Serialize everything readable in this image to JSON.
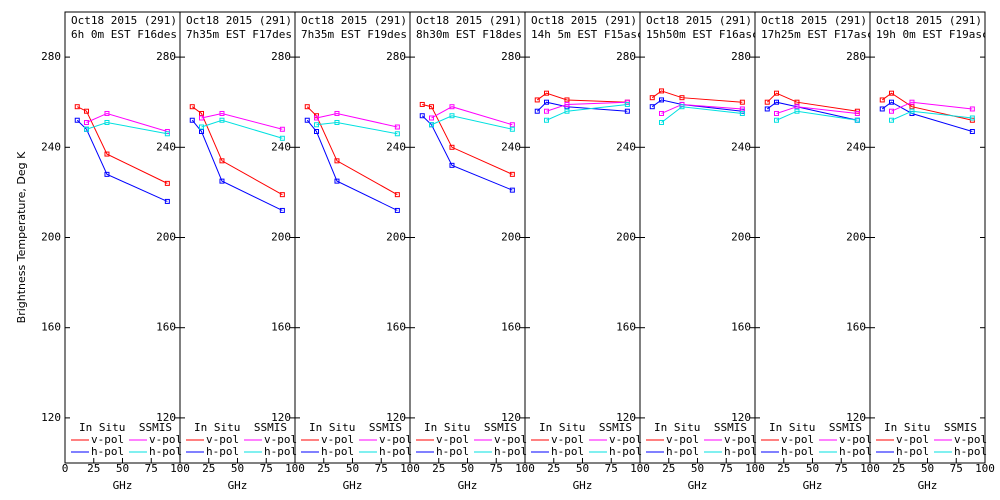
{
  "chart_data": [
    {
      "type": "line",
      "title": [
        "Oct18 2015 (291)",
        "6h 0m EST F16des"
      ],
      "ylabel": "Brightness Temperature, Deg K",
      "xlabel": "GHz",
      "x": [
        10.65,
        18.7,
        36.5,
        89
      ],
      "xlim": [
        0,
        100
      ],
      "xticks": [
        0,
        25,
        50,
        75,
        100
      ],
      "ylim": [
        100,
        300
      ],
      "yticks": [
        120,
        160,
        200,
        240,
        280
      ],
      "legend_titles": [
        "In Situ",
        "SSMIS"
      ],
      "series": [
        {
          "name": "v-pol",
          "color": "#ff0000",
          "values": [
            258,
            256,
            237,
            224
          ]
        },
        {
          "name": "h-pol",
          "color": "#0000ff",
          "values": [
            252,
            248,
            228,
            216
          ]
        },
        {
          "name": "v-pol",
          "color": "#ff00ff",
          "values": [
            null,
            251,
            255,
            247
          ]
        },
        {
          "name": "h-pol",
          "color": "#00e0e0",
          "values": [
            null,
            248,
            251,
            246
          ]
        }
      ]
    },
    {
      "type": "line",
      "title": [
        "Oct18 2015 (291)",
        "7h35m EST F17des"
      ],
      "xlabel": "GHz",
      "x": [
        10.65,
        18.7,
        36.5,
        89
      ],
      "xlim": [
        0,
        100
      ],
      "xticks": [
        25,
        50,
        75,
        100
      ],
      "ylim": [
        100,
        300
      ],
      "yticks": [
        120,
        160,
        200,
        240,
        280
      ],
      "legend_titles": [
        "In Situ",
        "SSMIS"
      ],
      "series": [
        {
          "name": "v-pol",
          "color": "#ff0000",
          "values": [
            258,
            255,
            234,
            219
          ]
        },
        {
          "name": "h-pol",
          "color": "#0000ff",
          "values": [
            252,
            247,
            225,
            212
          ]
        },
        {
          "name": "v-pol",
          "color": "#ff00ff",
          "values": [
            null,
            253,
            255,
            248
          ]
        },
        {
          "name": "h-pol",
          "color": "#00e0e0",
          "values": [
            null,
            249,
            252,
            244
          ]
        }
      ]
    },
    {
      "type": "line",
      "title": [
        "Oct18 2015 (291)",
        "7h35m EST F19des"
      ],
      "xlabel": "GHz",
      "x": [
        10.65,
        18.7,
        36.5,
        89
      ],
      "xlim": [
        0,
        100
      ],
      "xticks": [
        25,
        50,
        75,
        100
      ],
      "ylim": [
        100,
        300
      ],
      "yticks": [
        120,
        160,
        200,
        240,
        280
      ],
      "legend_titles": [
        "In Situ",
        "SSMIS"
      ],
      "series": [
        {
          "name": "v-pol",
          "color": "#ff0000",
          "values": [
            258,
            254,
            234,
            219
          ]
        },
        {
          "name": "h-pol",
          "color": "#0000ff",
          "values": [
            252,
            247,
            225,
            212
          ]
        },
        {
          "name": "v-pol",
          "color": "#ff00ff",
          "values": [
            null,
            253,
            255,
            249
          ]
        },
        {
          "name": "h-pol",
          "color": "#00e0e0",
          "values": [
            null,
            250,
            251,
            246
          ]
        }
      ]
    },
    {
      "type": "line",
      "title": [
        "Oct18 2015 (291)",
        "8h30m EST F18des"
      ],
      "xlabel": "GHz",
      "x": [
        10.65,
        18.7,
        36.5,
        89
      ],
      "xlim": [
        0,
        100
      ],
      "xticks": [
        25,
        50,
        75,
        100
      ],
      "ylim": [
        100,
        300
      ],
      "yticks": [
        120,
        160,
        200,
        240,
        280
      ],
      "legend_titles": [
        "In Situ",
        "SSMIS"
      ],
      "series": [
        {
          "name": "v-pol",
          "color": "#ff0000",
          "values": [
            259,
            258,
            240,
            228
          ]
        },
        {
          "name": "h-pol",
          "color": "#0000ff",
          "values": [
            254,
            250,
            232,
            221
          ]
        },
        {
          "name": "v-pol",
          "color": "#ff00ff",
          "values": [
            null,
            253,
            258,
            250
          ]
        },
        {
          "name": "h-pol",
          "color": "#00e0e0",
          "values": [
            null,
            250,
            254,
            248
          ]
        }
      ]
    },
    {
      "type": "line",
      "title": [
        "Oct18 2015 (291)",
        "14h 5m EST F15asc"
      ],
      "xlabel": "GHz",
      "x": [
        10.65,
        18.7,
        36.5,
        89
      ],
      "xlim": [
        0,
        100
      ],
      "xticks": [
        25,
        50,
        75,
        100
      ],
      "ylim": [
        100,
        300
      ],
      "yticks": [
        120,
        160,
        200,
        240,
        280
      ],
      "legend_titles": [
        "In Situ",
        "SSMIS"
      ],
      "series": [
        {
          "name": "v-pol",
          "color": "#ff0000",
          "values": [
            261,
            264,
            261,
            260
          ]
        },
        {
          "name": "h-pol",
          "color": "#0000ff",
          "values": [
            256,
            260,
            258,
            256
          ]
        },
        {
          "name": "v-pol",
          "color": "#ff00ff",
          "values": [
            null,
            256,
            259,
            260
          ]
        },
        {
          "name": "h-pol",
          "color": "#00e0e0",
          "values": [
            null,
            252,
            256,
            259
          ]
        }
      ]
    },
    {
      "type": "line",
      "title": [
        "Oct18 2015 (291)",
        "15h50m EST F16asc"
      ],
      "xlabel": "GHz",
      "x": [
        10.65,
        18.7,
        36.5,
        89
      ],
      "xlim": [
        0,
        100
      ],
      "xticks": [
        25,
        50,
        75,
        100
      ],
      "ylim": [
        100,
        300
      ],
      "yticks": [
        120,
        160,
        200,
        240,
        280
      ],
      "legend_titles": [
        "In Situ",
        "SSMIS"
      ],
      "series": [
        {
          "name": "v-pol",
          "color": "#ff0000",
          "values": [
            262,
            265,
            262,
            260
          ]
        },
        {
          "name": "h-pol",
          "color": "#0000ff",
          "values": [
            258,
            261,
            259,
            256
          ]
        },
        {
          "name": "v-pol",
          "color": "#ff00ff",
          "values": [
            null,
            255,
            259,
            257
          ]
        },
        {
          "name": "h-pol",
          "color": "#00e0e0",
          "values": [
            null,
            251,
            258,
            255
          ]
        }
      ]
    },
    {
      "type": "line",
      "title": [
        "Oct18 2015 (291)",
        "17h25m EST F17asc"
      ],
      "xlabel": "GHz",
      "x": [
        10.65,
        18.7,
        36.5,
        89
      ],
      "xlim": [
        0,
        100
      ],
      "xticks": [
        25,
        50,
        75,
        100
      ],
      "ylim": [
        100,
        300
      ],
      "yticks": [
        120,
        160,
        200,
        240,
        280
      ],
      "legend_titles": [
        "In Situ",
        "SSMIS"
      ],
      "series": [
        {
          "name": "v-pol",
          "color": "#ff0000",
          "values": [
            260,
            264,
            260,
            256
          ]
        },
        {
          "name": "h-pol",
          "color": "#0000ff",
          "values": [
            257,
            260,
            258,
            252
          ]
        },
        {
          "name": "v-pol",
          "color": "#ff00ff",
          "values": [
            null,
            255,
            258,
            255
          ]
        },
        {
          "name": "h-pol",
          "color": "#00e0e0",
          "values": [
            null,
            252,
            256,
            252
          ]
        }
      ]
    },
    {
      "type": "line",
      "title": [
        "Oct18 2015 (291)",
        "19h 0m EST F19asc"
      ],
      "xlabel": "GHz",
      "x": [
        10.65,
        18.7,
        36.5,
        89
      ],
      "xlim": [
        0,
        100
      ],
      "xticks": [
        25,
        50,
        75,
        100
      ],
      "ylim": [
        100,
        300
      ],
      "yticks": [
        120,
        160,
        200,
        240,
        280
      ],
      "legend_titles": [
        "In Situ",
        "SSMIS"
      ],
      "series": [
        {
          "name": "v-pol",
          "color": "#ff0000",
          "values": [
            261,
            264,
            258,
            252
          ]
        },
        {
          "name": "h-pol",
          "color": "#0000ff",
          "values": [
            257,
            260,
            255,
            247
          ]
        },
        {
          "name": "v-pol",
          "color": "#ff00ff",
          "values": [
            null,
            256,
            260,
            257
          ]
        },
        {
          "name": "h-pol",
          "color": "#00e0e0",
          "values": [
            null,
            252,
            256,
            253
          ]
        }
      ]
    }
  ]
}
